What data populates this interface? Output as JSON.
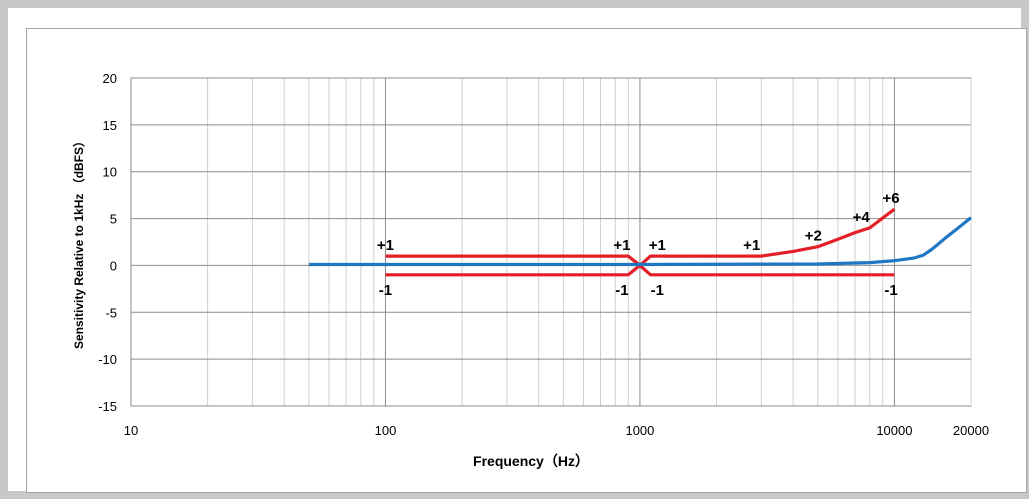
{
  "chart_data": {
    "type": "line",
    "title": "",
    "xlabel": "Frequency（Hz）",
    "ylabel": "Sensitivity Relative to 1kHz （dBFS）",
    "x_scale": "log",
    "xlim": [
      10,
      20000
    ],
    "ylim": [
      -15,
      20
    ],
    "grid": true,
    "x_tick_labels": [
      "10",
      "100",
      "1000",
      "10000",
      "20000"
    ],
    "x_ticks": [
      10,
      100,
      1000,
      10000,
      20000
    ],
    "y_tick_labels": [
      "20",
      "15",
      "10",
      "5",
      "0",
      "-5",
      "-10",
      "-15"
    ],
    "y_ticks": [
      20,
      15,
      10,
      5,
      0,
      -5,
      -10,
      -15
    ],
    "series": [
      {
        "color": "#e41e26",
        "x": [
          100,
          900,
          1000,
          1100,
          3000,
          4000,
          5000,
          6000,
          7000,
          8000,
          10000
        ],
        "y": [
          1,
          1,
          0,
          1,
          1,
          1.5,
          2,
          2.8,
          3.5,
          4,
          6
        ]
      },
      {
        "color": "#e41e26",
        "x": [
          100,
          900,
          1000,
          1100,
          10000
        ],
        "y": [
          -1,
          -1,
          0,
          -1,
          -1
        ]
      },
      {
        "color": "#1f77c4",
        "x": [
          50,
          1000,
          5000,
          8000,
          10000,
          12000,
          13000,
          14000,
          16000,
          18000,
          20000
        ],
        "y": [
          0.1,
          0.1,
          0.15,
          0.3,
          0.5,
          0.8,
          1.1,
          1.7,
          3,
          4.1,
          5.1
        ]
      }
    ],
    "annotations": [
      {
        "text": "+1",
        "x": 100,
        "y": 1,
        "pos": "above"
      },
      {
        "text": "-1",
        "x": 100,
        "y": -1,
        "pos": "below"
      },
      {
        "text": "+1",
        "x": 850,
        "y": 1,
        "pos": "above"
      },
      {
        "text": "-1",
        "x": 850,
        "y": -1,
        "pos": "below"
      },
      {
        "text": "+1",
        "x": 1170,
        "y": 1,
        "pos": "above"
      },
      {
        "text": "-1",
        "x": 1170,
        "y": -1,
        "pos": "below"
      },
      {
        "text": "+1",
        "x": 2750,
        "y": 1,
        "pos": "above"
      },
      {
        "text": "+2",
        "x": 4800,
        "y": 2,
        "pos": "above"
      },
      {
        "text": "+4",
        "x": 7400,
        "y": 4,
        "pos": "above"
      },
      {
        "text": "+6",
        "x": 9700,
        "y": 6,
        "pos": "above"
      },
      {
        "text": "-1",
        "x": 9700,
        "y": -1,
        "pos": "below"
      }
    ]
  }
}
